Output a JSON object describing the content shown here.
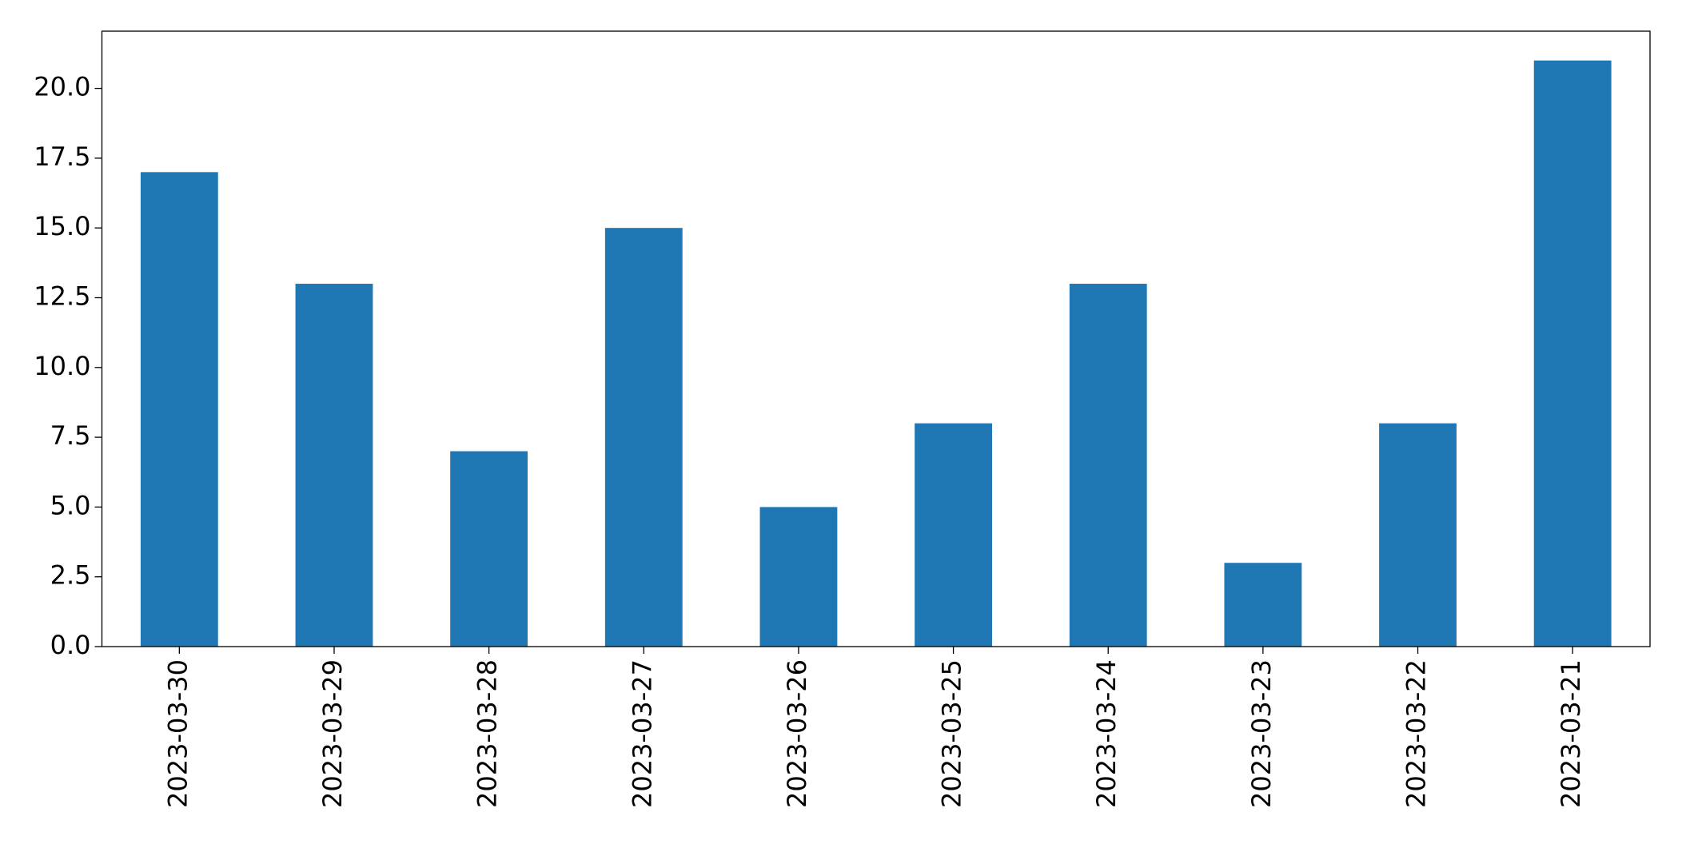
{
  "chart_data": {
    "type": "bar",
    "categories": [
      "2023-03-30",
      "2023-03-29",
      "2023-03-28",
      "2023-03-27",
      "2023-03-26",
      "2023-03-25",
      "2023-03-24",
      "2023-03-23",
      "2023-03-22",
      "2023-03-21"
    ],
    "values": [
      17,
      13,
      7,
      15,
      5,
      8,
      13,
      3,
      8,
      21
    ],
    "color": "#1f77b4",
    "ylim": [
      0,
      22.05
    ],
    "yticks": [
      {
        "value": 0,
        "label": "0.0"
      },
      2.5,
      {
        "value": 5,
        "label": "5.0"
      },
      7.5,
      {
        "value": 10,
        "label": "10.0"
      },
      12.5,
      {
        "value": 15,
        "label": "15.0"
      },
      17.5,
      {
        "value": 20,
        "label": "20.0"
      }
    ],
    "grid": false
  }
}
